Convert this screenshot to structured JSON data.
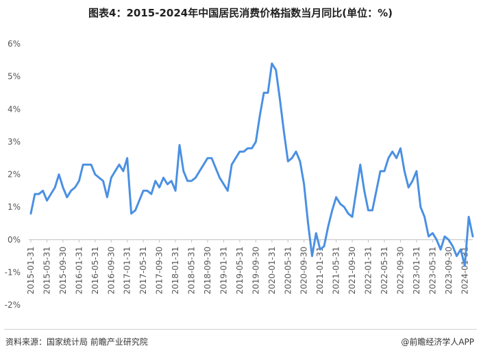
{
  "title": "图表4：2015-2024年中国居民消费价格指数当月同比(单位：%)",
  "source": "资料来源：国家统计局 前瞻产业研究院",
  "brand": "@前瞻经济学人APP",
  "chart_data": {
    "type": "line",
    "title": "图表4：2015-2024年中国居民消费价格指数当月同比(单位：%)",
    "xlabel": "",
    "ylabel": "",
    "ylim": [
      -2,
      6
    ],
    "yticks": [
      "-2%",
      "-1%",
      "0%",
      "1%",
      "2%",
      "3%",
      "4%",
      "5%",
      "6%"
    ],
    "grid": false,
    "color": "#4a90e2",
    "x_tick_labels": [
      "2015-01-31",
      "2015-05-31",
      "2015-09-30",
      "2016-01-31",
      "2016-05-31",
      "2016-09-30",
      "2017-01-31",
      "2017-05-31",
      "2017-09-30",
      "2018-01-31",
      "2018-05-31",
      "2018-09-30",
      "2019-01-31",
      "2019-05-31",
      "2019-09-30",
      "2020-01-31",
      "2020-05-31",
      "2020-09-30",
      "2021-01-31",
      "2021-05-31",
      "2021-09-30",
      "2022-01-31",
      "2022-05-31",
      "2022-09-30",
      "2023-01-31",
      "2023-05-31",
      "2023-09-30",
      "2024-01-31"
    ],
    "values": [
      0.8,
      1.4,
      1.4,
      1.5,
      1.2,
      1.4,
      1.6,
      2.0,
      1.6,
      1.3,
      1.5,
      1.6,
      1.8,
      2.3,
      2.3,
      2.3,
      2.0,
      1.9,
      1.8,
      1.3,
      1.9,
      2.1,
      2.3,
      2.1,
      2.5,
      0.8,
      0.9,
      1.2,
      1.5,
      1.5,
      1.4,
      1.8,
      1.6,
      1.9,
      1.7,
      1.8,
      1.5,
      2.9,
      2.1,
      1.8,
      1.8,
      1.9,
      2.1,
      2.3,
      2.5,
      2.5,
      2.2,
      1.9,
      1.7,
      1.5,
      2.3,
      2.5,
      2.7,
      2.7,
      2.8,
      2.8,
      3.0,
      3.8,
      4.5,
      4.5,
      5.4,
      5.2,
      4.3,
      3.3,
      2.4,
      2.5,
      2.7,
      2.4,
      1.7,
      0.5,
      -0.5,
      0.2,
      -0.3,
      -0.2,
      0.4,
      0.9,
      1.3,
      1.1,
      1.0,
      0.8,
      0.7,
      1.5,
      2.3,
      1.5,
      0.9,
      0.9,
      1.5,
      2.1,
      2.1,
      2.5,
      2.7,
      2.5,
      2.8,
      2.1,
      1.6,
      1.8,
      2.1,
      1.0,
      0.7,
      0.1,
      0.2,
      0.0,
      -0.3,
      0.1,
      0.0,
      -0.2,
      -0.5,
      -0.3,
      -0.8,
      0.7,
      0.1
    ]
  }
}
